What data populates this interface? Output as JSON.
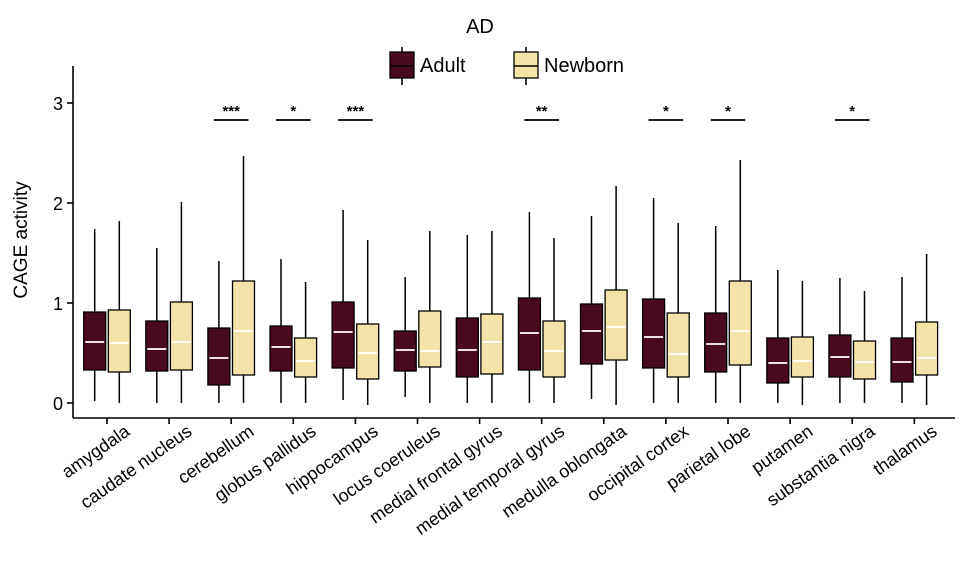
{
  "chart_data": {
    "type": "boxplot",
    "title": "AD",
    "xlabel": "",
    "ylabel": "CAGE activity",
    "ylim": [
      -0.05,
      3.35
    ],
    "yticks": [
      0,
      1,
      2,
      3
    ],
    "colors": {
      "adult": "#4a0a1e",
      "newborn": "#f3e3a8",
      "median_line": "#ffffff",
      "outline": "#000000"
    },
    "legend": {
      "position": "top",
      "entries": [
        {
          "key": "adult",
          "label": "Adult"
        },
        {
          "key": "newborn",
          "label": "Newborn"
        }
      ]
    },
    "categories": [
      {
        "name": "amygdala",
        "adult": {
          "min": 0.02,
          "q1": 0.33,
          "median": 0.61,
          "q3": 0.91,
          "max": 1.74
        },
        "newborn": {
          "min": 0.0,
          "q1": 0.31,
          "median": 0.6,
          "q3": 0.93,
          "max": 1.82
        },
        "sig": ""
      },
      {
        "name": "caudate nucleus",
        "adult": {
          "min": 0.0,
          "q1": 0.32,
          "median": 0.54,
          "q3": 0.82,
          "max": 1.55
        },
        "newborn": {
          "min": 0.0,
          "q1": 0.33,
          "median": 0.61,
          "q3": 1.01,
          "max": 2.01
        },
        "sig": ""
      },
      {
        "name": "cerebellum",
        "adult": {
          "min": 0.0,
          "q1": 0.18,
          "median": 0.45,
          "q3": 0.75,
          "max": 1.42
        },
        "newborn": {
          "min": 0.0,
          "q1": 0.28,
          "median": 0.72,
          "q3": 1.22,
          "max": 2.47
        },
        "sig": "***"
      },
      {
        "name": "globus pallidus",
        "adult": {
          "min": 0.0,
          "q1": 0.32,
          "median": 0.56,
          "q3": 0.77,
          "max": 1.44
        },
        "newborn": {
          "min": 0.0,
          "q1": 0.26,
          "median": 0.42,
          "q3": 0.65,
          "max": 1.21
        },
        "sig": "*"
      },
      {
        "name": "hippocampus",
        "adult": {
          "min": 0.03,
          "q1": 0.35,
          "median": 0.71,
          "q3": 1.01,
          "max": 1.93
        },
        "newborn": {
          "min": -0.02,
          "q1": 0.24,
          "median": 0.5,
          "q3": 0.79,
          "max": 1.63
        },
        "sig": "***"
      },
      {
        "name": "locus coeruleus",
        "adult": {
          "min": 0.06,
          "q1": 0.32,
          "median": 0.53,
          "q3": 0.72,
          "max": 1.26
        },
        "newborn": {
          "min": 0.0,
          "q1": 0.36,
          "median": 0.52,
          "q3": 0.92,
          "max": 1.72
        },
        "sig": ""
      },
      {
        "name": "medial frontal gyrus",
        "adult": {
          "min": 0.0,
          "q1": 0.26,
          "median": 0.53,
          "q3": 0.85,
          "max": 1.68
        },
        "newborn": {
          "min": 0.0,
          "q1": 0.29,
          "median": 0.61,
          "q3": 0.89,
          "max": 1.72
        },
        "sig": ""
      },
      {
        "name": "medial temporal gyrus",
        "adult": {
          "min": 0.0,
          "q1": 0.33,
          "median": 0.7,
          "q3": 1.05,
          "max": 1.91
        },
        "newborn": {
          "min": 0.0,
          "q1": 0.26,
          "median": 0.52,
          "q3": 0.82,
          "max": 1.65
        },
        "sig": "**"
      },
      {
        "name": "medulla oblongata",
        "adult": {
          "min": 0.04,
          "q1": 0.39,
          "median": 0.72,
          "q3": 0.99,
          "max": 1.87
        },
        "newborn": {
          "min": -0.02,
          "q1": 0.43,
          "median": 0.76,
          "q3": 1.13,
          "max": 2.17
        },
        "sig": ""
      },
      {
        "name": "occipital cortex",
        "adult": {
          "min": 0.0,
          "q1": 0.35,
          "median": 0.66,
          "q3": 1.04,
          "max": 2.05
        },
        "newborn": {
          "min": 0.0,
          "q1": 0.26,
          "median": 0.49,
          "q3": 0.9,
          "max": 1.8
        },
        "sig": "*"
      },
      {
        "name": "parietal lobe",
        "adult": {
          "min": 0.0,
          "q1": 0.31,
          "median": 0.59,
          "q3": 0.9,
          "max": 1.77
        },
        "newborn": {
          "min": 0.0,
          "q1": 0.38,
          "median": 0.72,
          "q3": 1.22,
          "max": 2.43
        },
        "sig": "*"
      },
      {
        "name": "putamen",
        "adult": {
          "min": 0.0,
          "q1": 0.2,
          "median": 0.4,
          "q3": 0.65,
          "max": 1.33
        },
        "newborn": {
          "min": -0.02,
          "q1": 0.26,
          "median": 0.42,
          "q3": 0.66,
          "max": 1.22
        },
        "sig": ""
      },
      {
        "name": "substantia nigra",
        "adult": {
          "min": 0.0,
          "q1": 0.26,
          "median": 0.46,
          "q3": 0.68,
          "max": 1.25
        },
        "newborn": {
          "min": 0.0,
          "q1": 0.24,
          "median": 0.41,
          "q3": 0.62,
          "max": 1.12
        },
        "sig": "*"
      },
      {
        "name": "thalamus",
        "adult": {
          "min": 0.0,
          "q1": 0.21,
          "median": 0.41,
          "q3": 0.65,
          "max": 1.26
        },
        "newborn": {
          "min": -0.02,
          "q1": 0.28,
          "median": 0.45,
          "q3": 0.81,
          "max": 1.49
        },
        "sig": ""
      }
    ]
  }
}
